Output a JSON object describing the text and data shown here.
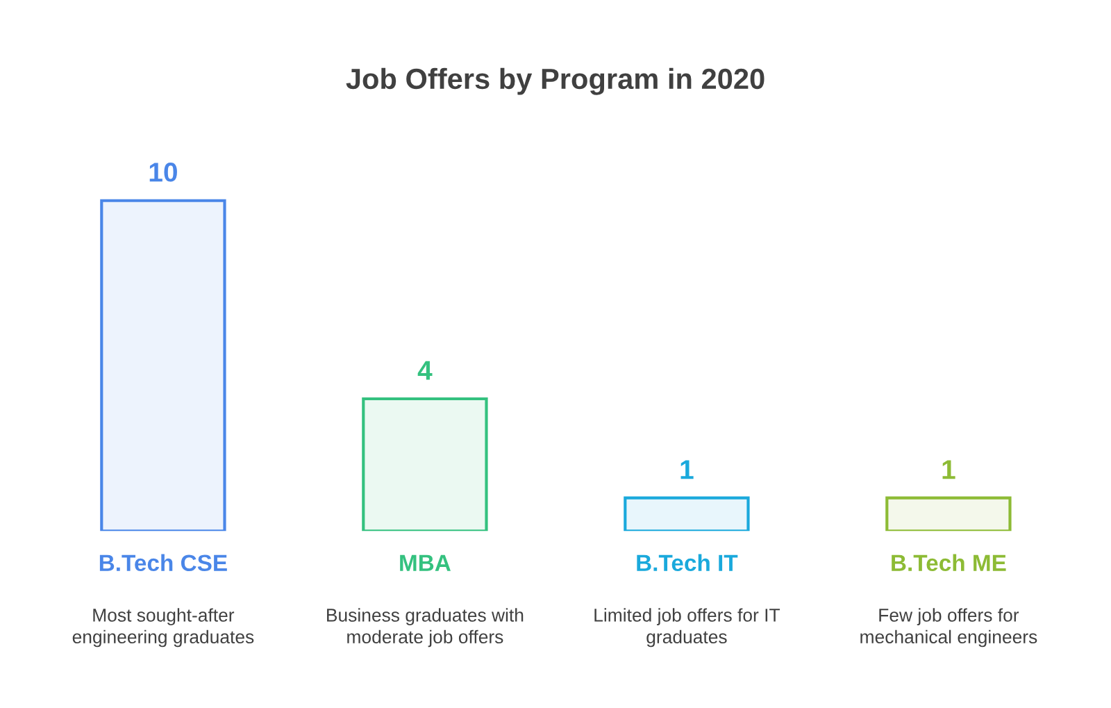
{
  "chart_data": {
    "type": "bar",
    "title": "Job Offers by Program in 2020",
    "categories": [
      "B.Tech CSE",
      "MBA",
      "B.Tech IT",
      "B.Tech ME"
    ],
    "values": [
      10,
      4,
      1,
      1
    ],
    "colors": [
      "#4a86e8",
      "#34c17f",
      "#1aa9dc",
      "#8dbb35"
    ],
    "data_labels": true,
    "annotations": [
      "Most sought-after\nengineering graduates",
      "Business graduates with\nmoderate job offers",
      "Limited job offers for IT\ngraduates",
      "Few job offers for\nmechanical engineers"
    ]
  }
}
